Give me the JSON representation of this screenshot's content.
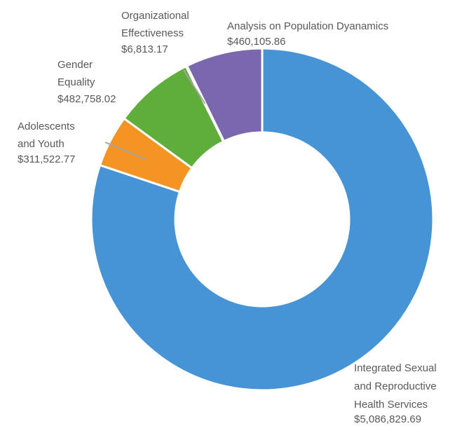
{
  "chart_data": {
    "type": "pie",
    "subtype": "donut",
    "title": "",
    "legend": "none",
    "slices": [
      {
        "label_lines": [
          "Integrated Sexual",
          "and Reproductive",
          "Health Services"
        ],
        "value_text": "$5,086,829.69",
        "value": 5086829.69,
        "color": "#4694d6"
      },
      {
        "label_lines": [
          "Adolescents",
          "and Youth"
        ],
        "value_text": "$311,522.77",
        "value": 311522.77,
        "color": "#f39423"
      },
      {
        "label_lines": [
          "Gender",
          "Equality"
        ],
        "value_text": "$482,758.02",
        "value": 482758.02,
        "color": "#5fae3b"
      },
      {
        "label_lines": [
          "Organizational",
          "Effectiveness"
        ],
        "value_text": "$6,813.17",
        "value": 6813.17,
        "color": "#a5a5a5"
      },
      {
        "label_lines": [
          "Analysis on Population Dyanamics"
        ],
        "value_text": "$460,105.86",
        "value": 460105.86,
        "color": "#7b67ad"
      }
    ]
  }
}
